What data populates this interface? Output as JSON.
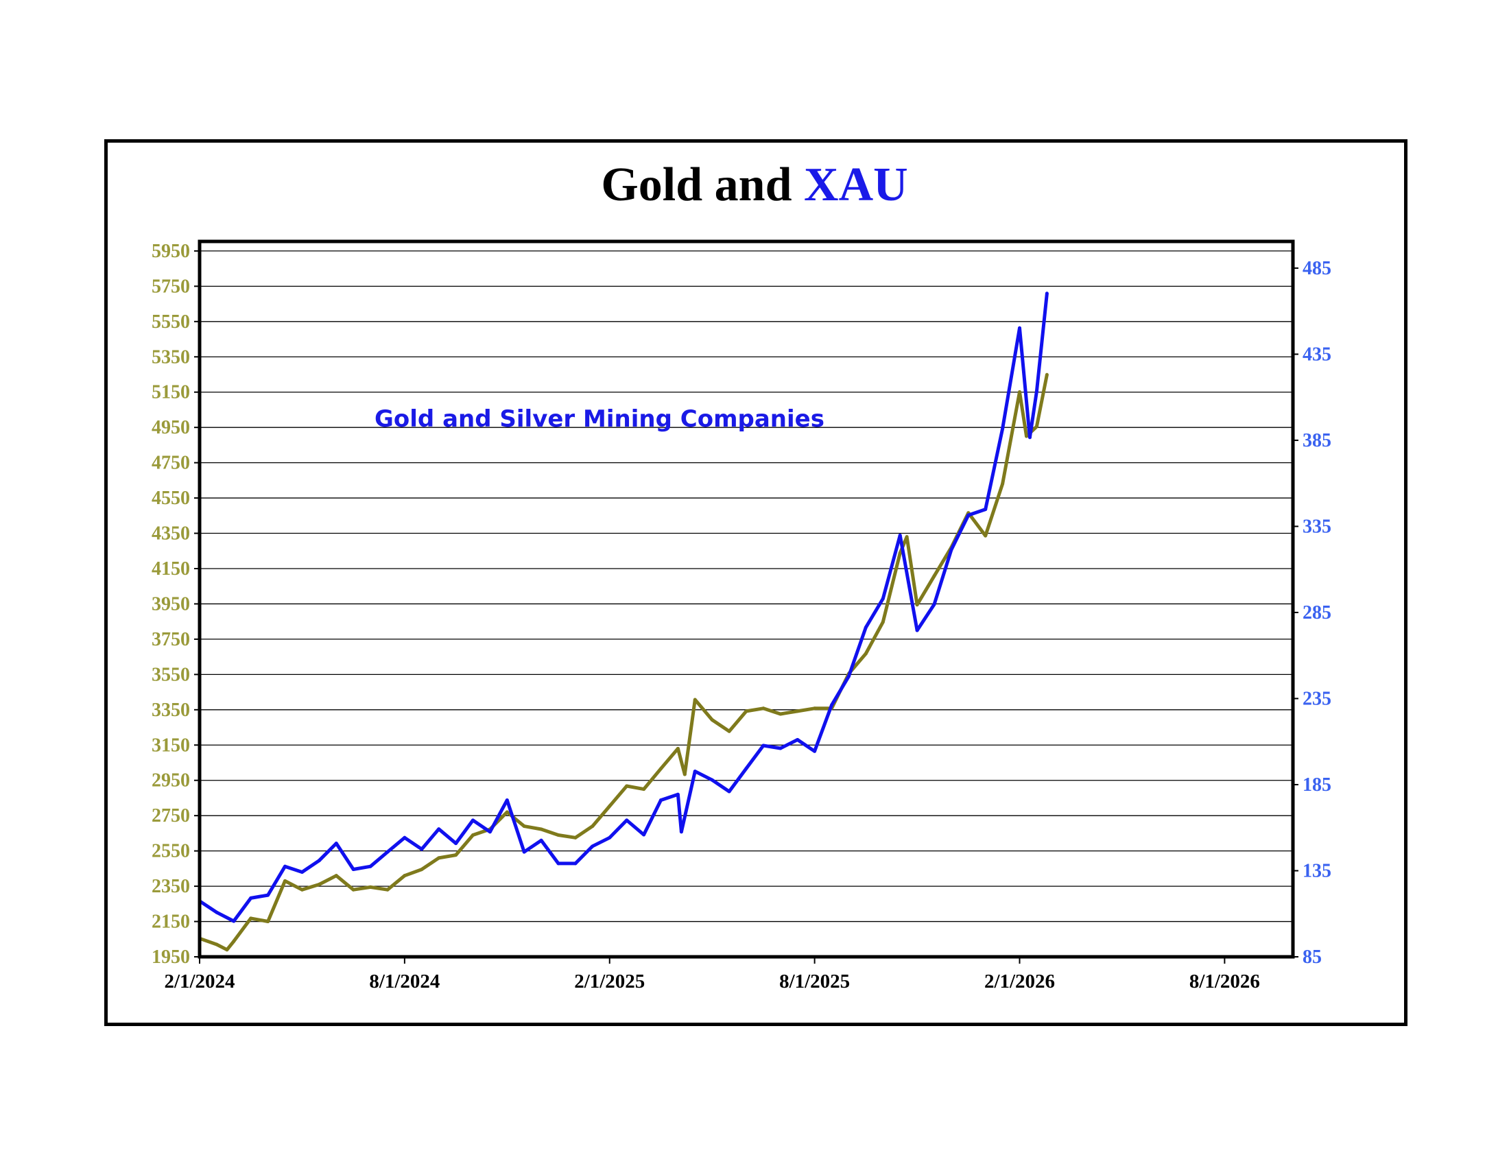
{
  "chart_data": {
    "type": "line",
    "title": "Gold and XAU",
    "title_parts": {
      "gold": "Gold and",
      "xau": "XAU"
    },
    "annotation": "Gold and Silver Mining  Companies",
    "x_unit": "months since 2/1/2024",
    "xlim": [
      0,
      32
    ],
    "x_ticks": [
      {
        "x": 0,
        "label": "2/1/2024"
      },
      {
        "x": 6,
        "label": "8/1/2024"
      },
      {
        "x": 12,
        "label": "2/1/2025"
      },
      {
        "x": 18,
        "label": "8/1/2025"
      },
      {
        "x": 24,
        "label": "2/1/2026"
      },
      {
        "x": 30,
        "label": "8/1/2026"
      }
    ],
    "y_left": {
      "lim": [
        1950,
        6004
      ],
      "ticks": [
        1950,
        2150,
        2350,
        2550,
        2750,
        2950,
        3150,
        3350,
        3550,
        3750,
        3950,
        4150,
        4350,
        4550,
        4750,
        4950,
        5150,
        5350,
        5550,
        5750,
        5950
      ],
      "color": "#9a9a3a"
    },
    "y_right": {
      "lim": [
        85,
        500.5
      ],
      "ticks": [
        85,
        135,
        185,
        235,
        285,
        335,
        385,
        435,
        485
      ],
      "color": "#3a62f0"
    },
    "grid": "horizontal",
    "series": [
      {
        "name": "Gold",
        "axis": "left",
        "color": "#7f7a1c",
        "x": [
          0,
          0.5,
          0.8,
          1,
          1.5,
          2,
          2.5,
          3,
          3.5,
          4,
          4.5,
          5,
          5.5,
          6,
          6.5,
          7,
          7.5,
          8,
          8.5,
          9,
          9.5,
          10,
          10.5,
          11,
          11.5,
          12,
          12.5,
          13,
          13.5,
          14,
          14.2,
          14.5,
          15,
          15.5,
          16,
          16.5,
          17,
          17.5,
          18,
          18.5,
          19,
          19.5,
          20,
          20.5,
          20.7,
          21,
          21.5,
          22,
          22.5,
          23,
          23.5,
          24,
          24.2,
          24.5,
          24.8
        ],
        "y": [
          2054,
          2020,
          1990,
          2038,
          2168,
          2150,
          2380,
          2330,
          2360,
          2410,
          2330,
          2345,
          2330,
          2410,
          2445,
          2510,
          2527,
          2640,
          2673,
          2770,
          2690,
          2673,
          2640,
          2625,
          2690,
          2804,
          2918,
          2900,
          3016,
          3130,
          2984,
          3407,
          3293,
          3228,
          3342,
          3358,
          3326,
          3342,
          3358,
          3358,
          3554,
          3668,
          3847,
          4238,
          4330,
          3945,
          4108,
          4270,
          4466,
          4336,
          4630,
          5151,
          4900,
          4955,
          5249
        ]
      },
      {
        "name": "XAU",
        "axis": "right",
        "color": "#1010ee",
        "x": [
          0,
          0.5,
          1,
          1.5,
          2,
          2.5,
          3,
          3.5,
          4,
          4.5,
          5,
          5.5,
          6,
          6.5,
          7,
          7.5,
          8,
          8.5,
          9,
          9.5,
          10,
          10.5,
          11,
          11.5,
          12,
          12.5,
          13,
          13.5,
          14,
          14.1,
          14.5,
          15,
          15.5,
          16,
          16.5,
          17,
          17.5,
          18,
          18.5,
          19,
          19.5,
          20,
          20.5,
          21,
          21.5,
          22,
          22.5,
          23,
          23.5,
          24,
          24.3,
          24.5,
          24.8
        ],
        "y": [
          117.4,
          110.8,
          105.7,
          119.1,
          120.8,
          137.5,
          134.2,
          140.9,
          150.9,
          135.8,
          137.5,
          145.9,
          154.2,
          147.5,
          159.2,
          150.9,
          164.3,
          157.6,
          176.0,
          145.9,
          152.6,
          139.2,
          139.2,
          149.2,
          154.2,
          164.3,
          155.9,
          176.0,
          179.3,
          157.6,
          192.7,
          187.7,
          181.0,
          194.4,
          207.7,
          206.1,
          211.1,
          204.4,
          231.2,
          247.9,
          276.3,
          293.0,
          329.8,
          274.6,
          289.7,
          321.4,
          341.5,
          344.9,
          391.7,
          450.2,
          386.7,
          413.4,
          470.3
        ]
      }
    ]
  }
}
